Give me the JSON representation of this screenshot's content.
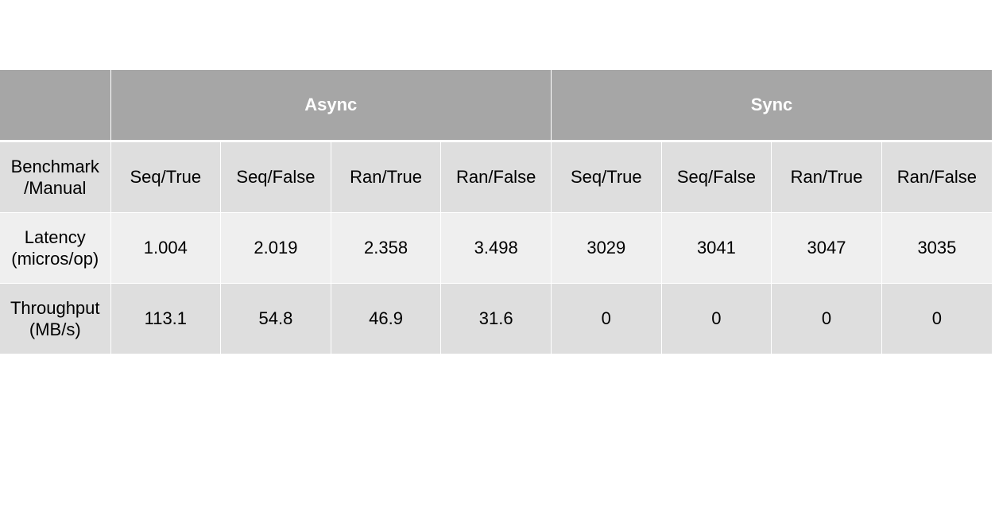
{
  "table": {
    "groups": [
      "Async",
      "Sync"
    ],
    "subheader": {
      "label_line1": "Benchmark",
      "label_line2": "/Manual",
      "columns": [
        "Seq/True",
        "Seq/False",
        "Ran/True",
        "Ran/False",
        "Seq/True",
        "Seq/False",
        "Ran/True",
        "Ran/False"
      ]
    },
    "rows": [
      {
        "label_line1": "Latency",
        "label_line2": "(micros/op)",
        "values": [
          "1.004",
          "2.019",
          "2.358",
          "3.498",
          "3029",
          "3041",
          "3047",
          "3035"
        ]
      },
      {
        "label_line1": "Throughput",
        "label_line2": "(MB/s)",
        "values": [
          "113.1",
          "54.8",
          "46.9",
          "31.6",
          "0",
          "0",
          "0",
          "0"
        ]
      }
    ]
  },
  "colors": {
    "group_header_bg": "#a6a6a6",
    "group_header_text": "#ffffff",
    "subheader_bg": "#dedede",
    "latency_row_bg": "#efefef",
    "throughput_row_bg": "#dedede"
  }
}
